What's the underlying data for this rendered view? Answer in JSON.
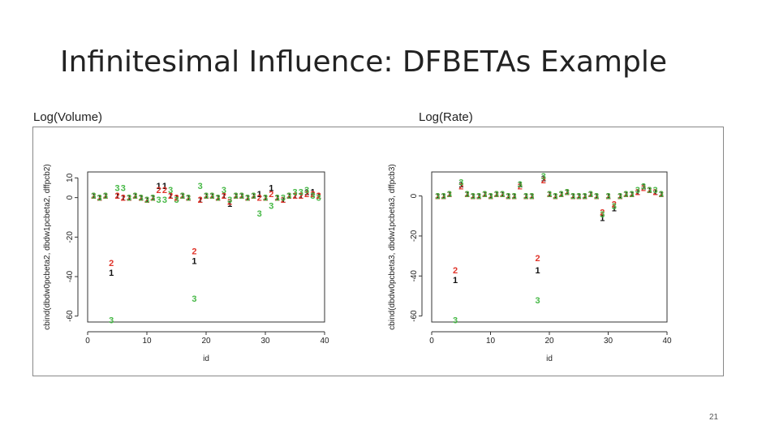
{
  "slide": {
    "title": "Infinitesimal Influence: DFBETAs Example",
    "page_number": "21"
  },
  "panels": [
    {
      "label": "Log(Volume)"
    },
    {
      "label": "Log(Rate)"
    }
  ],
  "colors": {
    "series_1": "#111111",
    "series_2": "#e0352b",
    "series_3": "#46b846",
    "axis": "#333333"
  },
  "chart_data": [
    {
      "type": "scatter",
      "title": "",
      "xlabel": "id",
      "ylabel": "cbind(dbdw0pcbeta2, dbdw1pcbeta2, dffpcb2)",
      "xlim": [
        0,
        40
      ],
      "ylim": [
        -63,
        13
      ],
      "xticks": [
        0,
        10,
        20,
        30,
        40
      ],
      "yticks": [
        10,
        0,
        -20,
        -40,
        -60
      ],
      "marker": "character",
      "series": [
        {
          "name": "1",
          "x": [
            1,
            2,
            3,
            4,
            5,
            6,
            7,
            8,
            9,
            10,
            11,
            12,
            13,
            14,
            15,
            16,
            17,
            18,
            19,
            20,
            21,
            22,
            23,
            24,
            25,
            26,
            27,
            28,
            29,
            30,
            31,
            32,
            33,
            34,
            35,
            36,
            37,
            38,
            39
          ],
          "y": [
            1,
            0,
            1,
            -38,
            1,
            0,
            0,
            1,
            0,
            -1,
            0,
            6,
            6,
            1,
            0,
            1,
            0,
            -32,
            -1,
            1,
            1,
            0,
            1,
            -3,
            1,
            1,
            0,
            1,
            2,
            0,
            5,
            0,
            -1,
            1,
            1,
            1,
            3,
            3,
            1
          ]
        },
        {
          "name": "2",
          "x": [
            1,
            2,
            3,
            4,
            5,
            6,
            7,
            8,
            9,
            10,
            11,
            12,
            13,
            14,
            15,
            16,
            17,
            18,
            19,
            20,
            21,
            22,
            23,
            24,
            25,
            26,
            27,
            28,
            29,
            30,
            31,
            32,
            33,
            34,
            35,
            36,
            37,
            38,
            39
          ],
          "y": [
            1,
            0,
            1,
            -33,
            1,
            0,
            0,
            1,
            0,
            -1,
            0,
            4,
            4,
            1,
            0,
            1,
            0,
            -27,
            -1,
            1,
            1,
            0,
            1,
            -2,
            1,
            1,
            0,
            1,
            0,
            0,
            2,
            0,
            -1,
            1,
            1,
            1,
            2,
            2,
            1
          ]
        },
        {
          "name": "3",
          "x": [
            1,
            2,
            3,
            4,
            5,
            6,
            7,
            8,
            9,
            10,
            11,
            12,
            13,
            14,
            15,
            16,
            17,
            18,
            19,
            20,
            21,
            22,
            23,
            24,
            25,
            26,
            27,
            28,
            29,
            30,
            31,
            32,
            33,
            34,
            35,
            36,
            37,
            38,
            39
          ],
          "y": [
            1,
            0,
            1,
            -62,
            5,
            5,
            0,
            1,
            0,
            -1,
            0,
            -1,
            -1,
            4,
            -1,
            1,
            0,
            -51,
            6,
            1,
            1,
            0,
            4,
            -1,
            1,
            1,
            0,
            1,
            -8,
            0,
            -4,
            0,
            0,
            1,
            3,
            3,
            4,
            1,
            0
          ]
        }
      ]
    },
    {
      "type": "scatter",
      "title": "",
      "xlabel": "id",
      "ylabel": "cbind(dbdw0pcbeta3, dbdw1pcbeta3, dffpcb3)",
      "xlim": [
        0,
        40
      ],
      "ylim": [
        -63,
        12
      ],
      "xticks": [
        0,
        10,
        20,
        30,
        40
      ],
      "yticks": [
        0,
        -20,
        -40,
        -60
      ],
      "marker": "character",
      "series": [
        {
          "name": "1",
          "x": [
            1,
            2,
            3,
            4,
            5,
            6,
            7,
            8,
            9,
            10,
            11,
            12,
            13,
            14,
            15,
            16,
            17,
            18,
            19,
            20,
            21,
            22,
            23,
            24,
            25,
            26,
            27,
            28,
            29,
            30,
            31,
            32,
            33,
            34,
            35,
            36,
            37,
            38,
            39
          ],
          "y": [
            0,
            0,
            1,
            -42,
            6,
            1,
            0,
            0,
            1,
            0,
            1,
            1,
            0,
            0,
            6,
            0,
            0,
            -37,
            9,
            1,
            0,
            1,
            2,
            0,
            0,
            0,
            1,
            0,
            -11,
            0,
            -6,
            0,
            1,
            1,
            2,
            5,
            3,
            2,
            1
          ]
        },
        {
          "name": "2",
          "x": [
            1,
            2,
            3,
            4,
            5,
            6,
            7,
            8,
            9,
            10,
            11,
            12,
            13,
            14,
            15,
            16,
            17,
            18,
            19,
            20,
            21,
            22,
            23,
            24,
            25,
            26,
            27,
            28,
            29,
            30,
            31,
            32,
            33,
            34,
            35,
            36,
            37,
            38,
            39
          ],
          "y": [
            0,
            0,
            1,
            -37,
            5,
            1,
            0,
            0,
            1,
            0,
            1,
            1,
            0,
            0,
            5,
            0,
            0,
            -31,
            8,
            1,
            0,
            1,
            2,
            0,
            0,
            0,
            1,
            0,
            -8,
            0,
            -4,
            0,
            1,
            1,
            2,
            4,
            3,
            2,
            1
          ]
        },
        {
          "name": "3",
          "x": [
            1,
            2,
            3,
            4,
            5,
            6,
            7,
            8,
            9,
            10,
            11,
            12,
            13,
            14,
            15,
            16,
            17,
            18,
            19,
            20,
            21,
            22,
            23,
            24,
            25,
            26,
            27,
            28,
            29,
            30,
            31,
            32,
            33,
            34,
            35,
            36,
            37,
            38,
            39
          ],
          "y": [
            0,
            0,
            1,
            -62,
            7,
            1,
            0,
            0,
            1,
            0,
            1,
            1,
            0,
            0,
            6,
            0,
            0,
            -52,
            10,
            1,
            0,
            1,
            2,
            0,
            0,
            0,
            1,
            0,
            -9,
            0,
            -5,
            0,
            1,
            1,
            3,
            5,
            3,
            3,
            1
          ]
        }
      ]
    }
  ]
}
